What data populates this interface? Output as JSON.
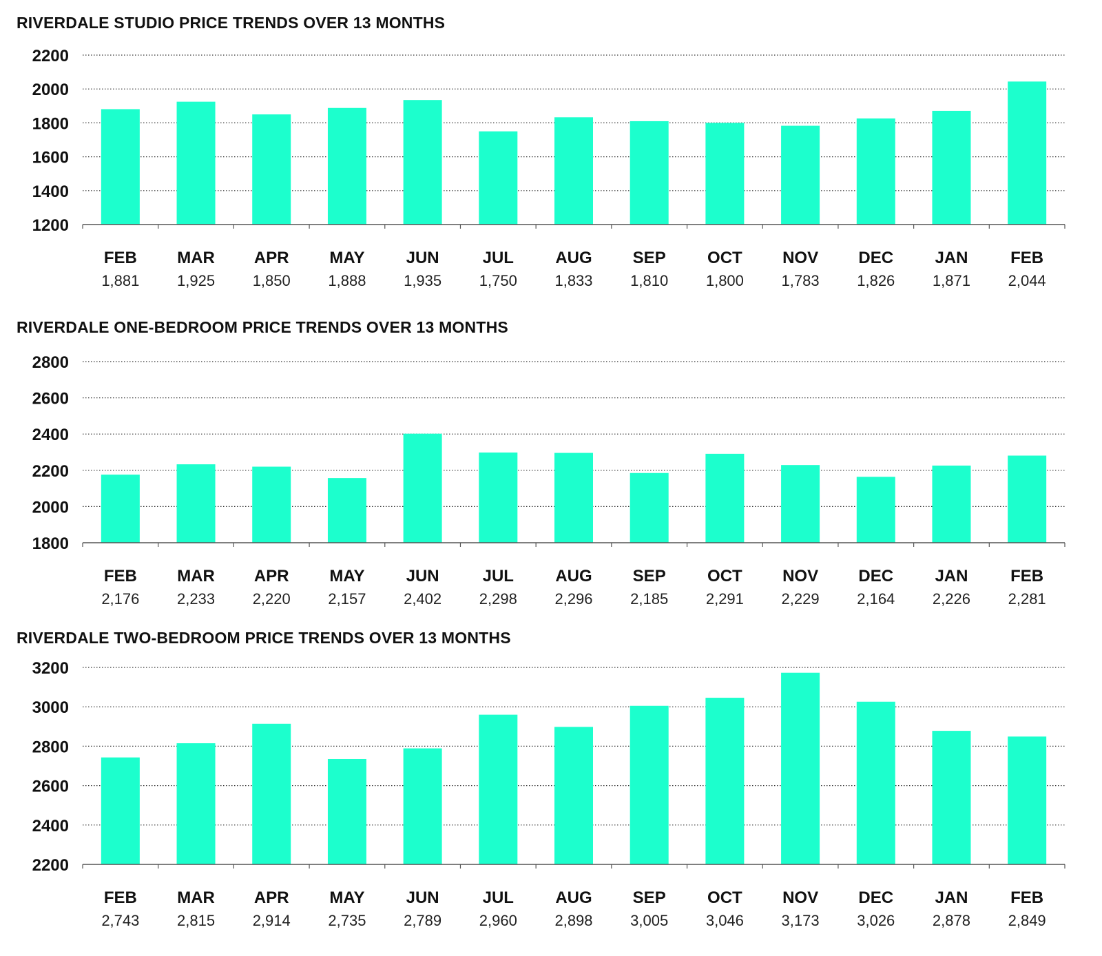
{
  "colors": {
    "bar": "#1cffcd",
    "grid": "#333333",
    "axis": "#555555",
    "text": "#111111"
  },
  "chart_data": [
    {
      "type": "bar",
      "title": "RIVERDALE STUDIO PRICE TRENDS OVER 13 MONTHS",
      "categories": [
        "FEB",
        "MAR",
        "APR",
        "MAY",
        "JUN",
        "JUL",
        "AUG",
        "SEP",
        "OCT",
        "NOV",
        "DEC",
        "JAN",
        "FEB"
      ],
      "values": [
        1881,
        1925,
        1850,
        1888,
        1935,
        1750,
        1833,
        1810,
        1800,
        1783,
        1826,
        1871,
        2044
      ],
      "value_labels": [
        "1,881",
        "1,925",
        "1,850",
        "1,888",
        "1,935",
        "1,750",
        "1,833",
        "1,810",
        "1,800",
        "1,783",
        "1,826",
        "1,871",
        "2,044"
      ],
      "yticks": [
        1200,
        1400,
        1600,
        1800,
        2000,
        2200
      ],
      "ylim": [
        1200,
        2200
      ],
      "grid": true,
      "xlabel": "",
      "ylabel": ""
    },
    {
      "type": "bar",
      "title": "RIVERDALE ONE-BEDROOM PRICE TRENDS OVER 13 MONTHS",
      "categories": [
        "FEB",
        "MAR",
        "APR",
        "MAY",
        "JUN",
        "JUL",
        "AUG",
        "SEP",
        "OCT",
        "NOV",
        "DEC",
        "JAN",
        "FEB"
      ],
      "values": [
        2176,
        2233,
        2220,
        2157,
        2402,
        2298,
        2296,
        2185,
        2291,
        2229,
        2164,
        2226,
        2281
      ],
      "value_labels": [
        "2,176",
        "2,233",
        "2,220",
        "2,157",
        "2,402",
        "2,298",
        "2,296",
        "2,185",
        "2,291",
        "2,229",
        "2,164",
        "2,226",
        "2,281"
      ],
      "yticks": [
        1800,
        2000,
        2200,
        2400,
        2600,
        2800
      ],
      "ylim": [
        1800,
        2800
      ],
      "grid": true,
      "xlabel": "",
      "ylabel": ""
    },
    {
      "type": "bar",
      "title": "RIVERDALE TWO-BEDROOM PRICE TRENDS OVER 13 MONTHS",
      "categories": [
        "FEB",
        "MAR",
        "APR",
        "MAY",
        "JUN",
        "JUL",
        "AUG",
        "SEP",
        "OCT",
        "NOV",
        "DEC",
        "JAN",
        "FEB"
      ],
      "values": [
        2743,
        2815,
        2914,
        2735,
        2789,
        2960,
        2898,
        3005,
        3046,
        3173,
        3026,
        2878,
        2849
      ],
      "value_labels": [
        "2,743",
        "2,815",
        "2,914",
        "2,735",
        "2,789",
        "2,960",
        "2,898",
        "3,005",
        "3,046",
        "3,173",
        "3,026",
        "2,878",
        "2,849"
      ],
      "yticks": [
        2200,
        2400,
        2600,
        2800,
        3000,
        3200
      ],
      "ylim": [
        2200,
        3200
      ],
      "grid": true,
      "xlabel": "",
      "ylabel": ""
    }
  ]
}
